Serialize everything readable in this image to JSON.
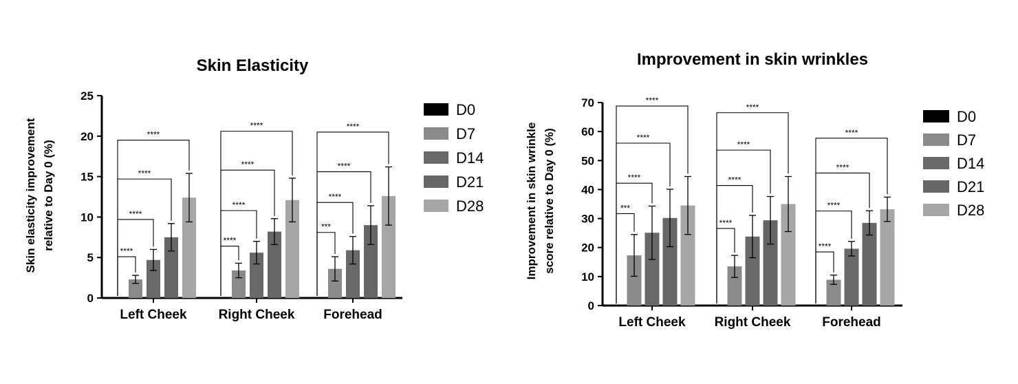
{
  "chart_data": [
    {
      "type": "bar",
      "title": "Skin Elasticity",
      "ylabel": [
        "Skin elasticity improvement",
        "relative to  Day 0 (%)"
      ],
      "xlabel": "",
      "ylim": [
        0,
        25
      ],
      "yticks": [
        "0",
        "5",
        "10",
        "15",
        "20",
        "25"
      ],
      "categories": [
        "Left Cheek",
        "Right Cheek",
        "Forehead"
      ],
      "series": [
        {
          "name": "D0",
          "color": "#000000",
          "values": [
            0,
            0,
            0
          ],
          "errors": [
            0,
            0,
            0
          ]
        },
        {
          "name": "D7",
          "color": "#8a8a8a",
          "values": [
            2.3,
            3.4,
            3.6
          ],
          "errors": [
            0.5,
            0.9,
            1.5
          ]
        },
        {
          "name": "D14",
          "color": "#696969",
          "values": [
            4.7,
            5.6,
            5.9
          ],
          "errors": [
            1.3,
            1.4,
            1.7
          ]
        },
        {
          "name": "D21",
          "color": "#666666",
          "values": [
            7.5,
            8.2,
            9.0
          ],
          "errors": [
            1.7,
            1.6,
            2.4
          ]
        },
        {
          "name": "D28",
          "color": "#a6a6a6",
          "values": [
            12.4,
            12.1,
            12.6
          ],
          "errors": [
            3.0,
            2.7,
            3.6
          ]
        }
      ],
      "significance": [
        {
          "category": 0,
          "to_series": 1,
          "label": "****",
          "y": 5.1
        },
        {
          "category": 0,
          "to_series": 2,
          "label": "****",
          "y": 9.7
        },
        {
          "category": 0,
          "to_series": 3,
          "label": "****",
          "y": 14.7
        },
        {
          "category": 0,
          "to_series": 4,
          "label": "****",
          "y": 19.5
        },
        {
          "category": 1,
          "to_series": 1,
          "label": "****",
          "y": 6.4
        },
        {
          "category": 1,
          "to_series": 2,
          "label": "****",
          "y": 10.8
        },
        {
          "category": 1,
          "to_series": 3,
          "label": "****",
          "y": 15.8
        },
        {
          "category": 1,
          "to_series": 4,
          "label": "****",
          "y": 20.6
        },
        {
          "category": 2,
          "to_series": 1,
          "label": "***",
          "y": 8.1
        },
        {
          "category": 2,
          "to_series": 2,
          "label": "****",
          "y": 11.8
        },
        {
          "category": 2,
          "to_series": 3,
          "label": "****",
          "y": 15.6
        },
        {
          "category": 2,
          "to_series": 4,
          "label": "****",
          "y": 20.5
        }
      ],
      "legend": "right",
      "grid": false
    },
    {
      "type": "bar",
      "title": "Improvement in skin wrinkles",
      "ylabel": [
        "Improvement in skin wrinkle",
        "score relative to Day 0 (%)"
      ],
      "xlabel": "",
      "ylim": [
        0,
        70
      ],
      "yticks": [
        "0",
        "10",
        "20",
        "30",
        "40",
        "50",
        "60",
        "70"
      ],
      "categories": [
        "Left Cheek",
        "Right Cheek",
        "Forehead"
      ],
      "series": [
        {
          "name": "D0",
          "color": "#000000",
          "values": [
            0,
            0,
            0
          ],
          "errors": [
            0,
            0,
            0
          ]
        },
        {
          "name": "D7",
          "color": "#8a8a8a",
          "values": [
            17.3,
            13.5,
            8.9
          ],
          "errors": [
            7.2,
            3.8,
            1.6
          ]
        },
        {
          "name": "D14",
          "color": "#696969",
          "values": [
            25.1,
            23.8,
            19.6
          ],
          "errors": [
            9.2,
            7.3,
            2.5
          ]
        },
        {
          "name": "D21",
          "color": "#666666",
          "values": [
            30.2,
            29.4,
            28.5
          ],
          "errors": [
            9.9,
            8.2,
            4.2
          ]
        },
        {
          "name": "D28",
          "color": "#a6a6a6",
          "values": [
            34.5,
            35.0,
            33.2
          ],
          "errors": [
            10.0,
            9.5,
            4.2
          ]
        }
      ],
      "significance": [
        {
          "category": 0,
          "to_series": 1,
          "label": "***",
          "y": 31.7
        },
        {
          "category": 0,
          "to_series": 2,
          "label": "****",
          "y": 42.2
        },
        {
          "category": 0,
          "to_series": 3,
          "label": "****",
          "y": 56.0
        },
        {
          "category": 0,
          "to_series": 4,
          "label": "****",
          "y": 68.8
        },
        {
          "category": 1,
          "to_series": 1,
          "label": "****",
          "y": 26.6
        },
        {
          "category": 1,
          "to_series": 2,
          "label": "****",
          "y": 41.4
        },
        {
          "category": 1,
          "to_series": 3,
          "label": "****",
          "y": 53.6
        },
        {
          "category": 1,
          "to_series": 4,
          "label": "****",
          "y": 66.5
        },
        {
          "category": 2,
          "to_series": 1,
          "label": "****",
          "y": 18.5
        },
        {
          "category": 2,
          "to_series": 2,
          "label": "****",
          "y": 32.6
        },
        {
          "category": 2,
          "to_series": 3,
          "label": "****",
          "y": 45.7
        },
        {
          "category": 2,
          "to_series": 4,
          "label": "****",
          "y": 57.7
        }
      ],
      "legend": "right",
      "grid": false
    }
  ]
}
